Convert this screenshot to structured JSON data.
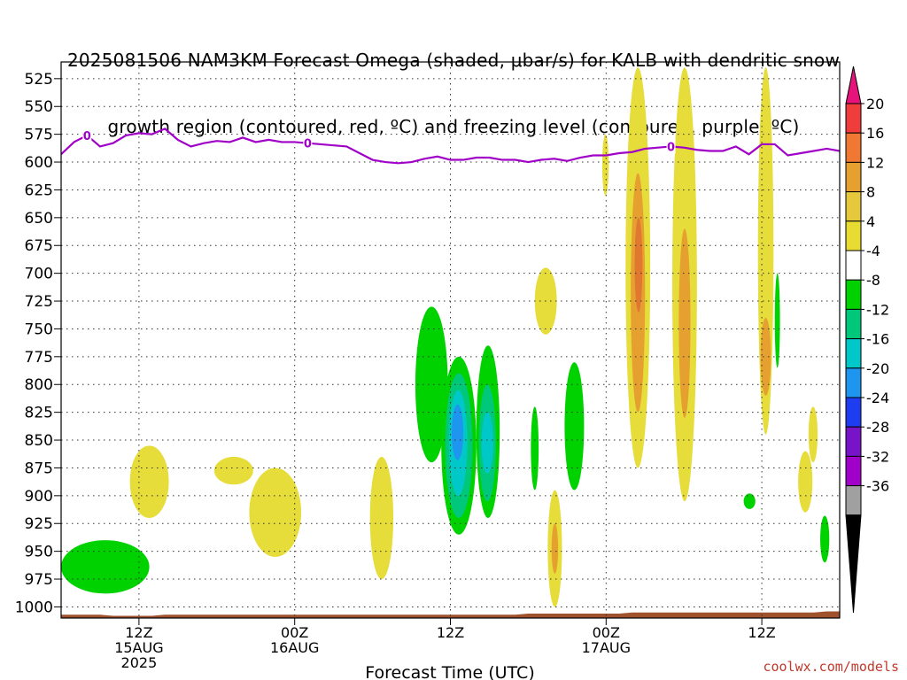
{
  "title_lines": [
    "2025081506 NAM3KM Forecast Omega (shaded, μbar/s) for KALB with dendritic snow",
    "growth region (contoured, red, ºC) and freezing level (contoured, purple, ºC)"
  ],
  "credit": "coolwx.com/models",
  "chart_data": {
    "type": "heatmap",
    "title": "2025081506 NAM3KM Forecast Omega (shaded, μbar/s) for KALB with dendritic snow growth region (contoured, red, ºC) and freezing level (contoured, purple, ºC)",
    "xlabel": "Forecast Time (UTC)",
    "ylabel": "",
    "x_unit": "hours since 2025-08-15 06Z",
    "xlim": [
      0,
      60
    ],
    "ylim": [
      1010,
      510
    ],
    "grid": true,
    "y_ticks": [
      525,
      550,
      575,
      600,
      625,
      650,
      675,
      700,
      725,
      750,
      775,
      800,
      825,
      850,
      875,
      900,
      925,
      950,
      975,
      1000
    ],
    "x_ticks": [
      {
        "x": 6,
        "lines": [
          "12Z",
          "15AUG",
          "2025"
        ]
      },
      {
        "x": 18,
        "lines": [
          "00Z",
          "16AUG"
        ]
      },
      {
        "x": 30,
        "lines": [
          "12Z"
        ]
      },
      {
        "x": 42,
        "lines": [
          "00Z",
          "17AUG"
        ]
      },
      {
        "x": 54,
        "lines": [
          "12Z"
        ]
      }
    ],
    "colorbar": {
      "levels": [
        20,
        16,
        12,
        8,
        4,
        -4,
        -8,
        -12,
        -16,
        -20,
        -24,
        -28,
        -32,
        -36
      ],
      "colors": [
        "#f03c3c",
        "#f07832",
        "#e6a030",
        "#e6c83c",
        "#e8dc32",
        "#ffffff",
        "#00d200",
        "#00c87a",
        "#00c8c8",
        "#1e96f0",
        "#1e3cf0",
        "#7814c8",
        "#a000c8",
        "#a0a0a0"
      ],
      "top_arrow_color": "#e6147a",
      "bottom_arrow_color": "#000000"
    },
    "freezing_level": {
      "label": "0",
      "color": "#a000c8",
      "x": [
        0,
        1,
        2,
        3,
        4,
        5,
        6,
        7,
        8,
        9,
        10,
        11,
        12,
        13,
        14,
        15,
        16,
        17,
        18,
        19,
        20,
        21,
        22,
        23,
        24,
        25,
        26,
        27,
        28,
        29,
        30,
        31,
        32,
        33,
        34,
        35,
        36,
        37,
        38,
        39,
        40,
        41,
        42,
        43,
        44,
        45,
        46,
        47,
        48,
        49,
        50,
        51,
        52,
        53,
        54,
        55,
        56,
        57,
        58,
        59,
        60
      ],
      "y": [
        593,
        582,
        576,
        586,
        583,
        576,
        574,
        575,
        570,
        580,
        586,
        583,
        581,
        582,
        578,
        582,
        580,
        582,
        582,
        583,
        584,
        585,
        586,
        592,
        598,
        600,
        601,
        600,
        597,
        595,
        598,
        598,
        596,
        596,
        598,
        598,
        600,
        598,
        597,
        599,
        596,
        594,
        594,
        592,
        591,
        588,
        587,
        586,
        587,
        589,
        590,
        590,
        586,
        593,
        584,
        584,
        594,
        592,
        590,
        588,
        590
      ]
    },
    "surface_pressure_hPa": [
      1007,
      1007,
      1007,
      1007,
      1008,
      1008,
      1008,
      1008,
      1007,
      1007,
      1007,
      1007,
      1007,
      1007,
      1007,
      1007,
      1007,
      1007,
      1007,
      1007,
      1007,
      1007,
      1007,
      1007,
      1007,
      1007,
      1007,
      1007,
      1007,
      1007,
      1007,
      1007,
      1007,
      1007,
      1007,
      1007,
      1006,
      1006,
      1006,
      1006,
      1006,
      1006,
      1006,
      1006,
      1005,
      1005,
      1005,
      1005,
      1005,
      1005,
      1005,
      1005,
      1005,
      1005,
      1005,
      1005,
      1005,
      1005,
      1005,
      1004,
      1004
    ],
    "omega_regions": [
      {
        "value": -6,
        "color": "#00d200",
        "t0": 0.0,
        "t1": 6.8,
        "p0": 940,
        "p1": 988
      },
      {
        "value": 5,
        "color": "#e6dc3a",
        "t0": 5.3,
        "t1": 8.3,
        "p0": 855,
        "p1": 920
      },
      {
        "value": 5,
        "color": "#e6dc3a",
        "t0": 11.8,
        "t1": 14.8,
        "p0": 865,
        "p1": 890
      },
      {
        "value": 5,
        "color": "#e6dc3a",
        "t0": 14.5,
        "t1": 18.5,
        "p0": 875,
        "p1": 955
      },
      {
        "value": 5,
        "color": "#e6dc3a",
        "t0": 23.8,
        "t1": 25.6,
        "p0": 865,
        "p1": 975
      },
      {
        "value": -6,
        "color": "#00d200",
        "t0": 27.3,
        "t1": 29.8,
        "p0": 730,
        "p1": 870
      },
      {
        "value": -8,
        "color": "#00d200",
        "t0": 29.3,
        "t1": 32.0,
        "p0": 775,
        "p1": 935
      },
      {
        "value": -11,
        "color": "#00c87a",
        "t0": 29.6,
        "t1": 31.7,
        "p0": 790,
        "p1": 920
      },
      {
        "value": -14,
        "color": "#00c8c8",
        "t0": 29.9,
        "t1": 31.3,
        "p0": 805,
        "p1": 900
      },
      {
        "value": -17,
        "color": "#1e96f0",
        "t0": 30.1,
        "t1": 31.0,
        "p0": 818,
        "p1": 868
      },
      {
        "value": -8,
        "color": "#00d200",
        "t0": 32.0,
        "t1": 33.8,
        "p0": 765,
        "p1": 920
      },
      {
        "value": -11,
        "color": "#00c87a",
        "t0": 32.2,
        "t1": 33.5,
        "p0": 800,
        "p1": 905
      },
      {
        "value": -14,
        "color": "#00c8c8",
        "t0": 32.4,
        "t1": 33.3,
        "p0": 825,
        "p1": 880
      },
      {
        "value": 5,
        "color": "#e6dc3a",
        "t0": 36.5,
        "t1": 38.2,
        "p0": 695,
        "p1": 755
      },
      {
        "value": -6,
        "color": "#00d200",
        "t0": 36.2,
        "t1": 36.8,
        "p0": 820,
        "p1": 895
      },
      {
        "value": 5,
        "color": "#e6dc3a",
        "t0": 37.5,
        "t1": 38.6,
        "p0": 895,
        "p1": 1000
      },
      {
        "value": 8,
        "color": "#e6a030",
        "t0": 37.8,
        "t1": 38.3,
        "p0": 925,
        "p1": 970
      },
      {
        "value": -6,
        "color": "#00d200",
        "t0": 38.8,
        "t1": 40.3,
        "p0": 780,
        "p1": 895
      },
      {
        "value": 5,
        "color": "#e6dc3a",
        "t0": 41.7,
        "t1": 42.2,
        "p0": 575,
        "p1": 630
      },
      {
        "value": 5,
        "color": "#e6dc3a",
        "t0": 43.5,
        "t1": 45.4,
        "p0": 515,
        "p1": 875
      },
      {
        "value": 8,
        "color": "#e6a030",
        "t0": 43.9,
        "t1": 45.0,
        "p0": 610,
        "p1": 825
      },
      {
        "value": 12,
        "color": "#e07830",
        "t0": 44.2,
        "t1": 44.8,
        "p0": 650,
        "p1": 735
      },
      {
        "value": 5,
        "color": "#e6dc3a",
        "t0": 47.1,
        "t1": 49.0,
        "p0": 515,
        "p1": 905
      },
      {
        "value": 8,
        "color": "#e6a030",
        "t0": 47.6,
        "t1": 48.5,
        "p0": 660,
        "p1": 830
      },
      {
        "value": 5,
        "color": "#e6dc3a",
        "t0": 53.7,
        "t1": 54.9,
        "p0": 515,
        "p1": 845
      },
      {
        "value": 8,
        "color": "#e6a030",
        "t0": 53.9,
        "t1": 54.7,
        "p0": 740,
        "p1": 810
      },
      {
        "value": -6,
        "color": "#00d200",
        "t0": 55.0,
        "t1": 55.4,
        "p0": 700,
        "p1": 785
      },
      {
        "value": -6,
        "color": "#00d200",
        "t0": 52.6,
        "t1": 53.5,
        "p0": 898,
        "p1": 912
      },
      {
        "value": 5,
        "color": "#e6dc3a",
        "t0": 56.8,
        "t1": 57.9,
        "p0": 860,
        "p1": 915
      },
      {
        "value": 5,
        "color": "#e6dc3a",
        "t0": 57.6,
        "t1": 58.3,
        "p0": 820,
        "p1": 870
      },
      {
        "value": -6,
        "color": "#00d200",
        "t0": 58.5,
        "t1": 59.2,
        "p0": 918,
        "p1": 960
      }
    ]
  }
}
